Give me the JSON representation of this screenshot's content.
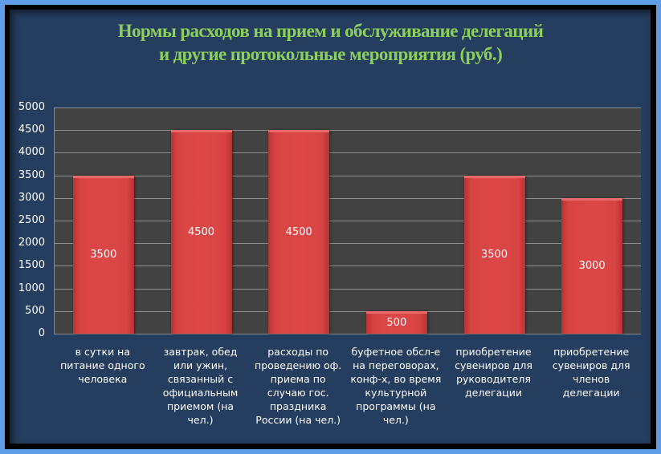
{
  "title_line1": "Нормы расходов на прием и обслуживание делегаций",
  "title_line2": "и другие протокольные мероприятия (руб.)",
  "colors": {
    "background": "#253d5e",
    "border_outer": "#5f9de8",
    "plot_bg": "#434343",
    "bar": "#d84444",
    "title": "#8ccf5a"
  },
  "y_ticks": [
    "5000",
    "4500",
    "4000",
    "3500",
    "3000",
    "2500",
    "2000",
    "1500",
    "1000",
    "500",
    "0"
  ],
  "categories": [
    "в сутки на питание одного человека",
    "завтрак, обед или ужин, связанный с официальным приемом (на чел.)",
    "расходы по проведению оф. приема по случаю гос. праздника России  (на чел.)",
    "буфетное обсл-е на переговорах, конф-х, во время культурной программы (на чел.)",
    "приобретение сувениров для руководителя делегации",
    "приобретение сувениров для членов делегации"
  ],
  "value_labels": [
    "3500",
    "4500",
    "4500",
    "500",
    "3500",
    "3000"
  ],
  "chart_data": {
    "type": "bar",
    "title": "Нормы расходов на прием и обслуживание делегаций и другие протокольные мероприятия (руб.)",
    "categories": [
      "в сутки на питание одного человека",
      "завтрак, обед или ужин, связанный с официальным приемом (на чел.)",
      "расходы по проведению оф. приема по случаю гос. праздника России  (на чел.)",
      "буфетное обсл-е на переговорах, конф-х, во время культурной программы (на чел.)",
      "приобретение сувениров для руководителя делегации",
      "приобретение сувениров для членов делегации"
    ],
    "values": [
      3500,
      4500,
      4500,
      500,
      3500,
      3000
    ],
    "xlabel": "",
    "ylabel": "",
    "ylim": [
      0,
      5000
    ],
    "y_tick_step": 500,
    "grid": true,
    "legend": "none",
    "data_labels": true
  }
}
